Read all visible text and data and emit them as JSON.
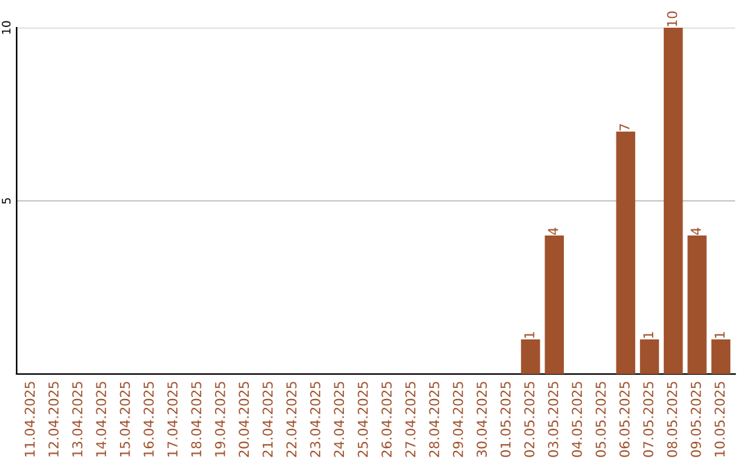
{
  "chart_data": {
    "type": "bar",
    "categories": [
      "11.04.2025",
      "12.04.2025",
      "13.04.2025",
      "14.04.2025",
      "15.04.2025",
      "16.04.2025",
      "17.04.2025",
      "18.04.2025",
      "19.04.2025",
      "20.04.2025",
      "21.04.2025",
      "22.04.2025",
      "23.04.2025",
      "24.04.2025",
      "25.04.2025",
      "26.04.2025",
      "27.04.2025",
      "28.04.2025",
      "29.04.2025",
      "30.04.2025",
      "01.05.2025",
      "02.05.2025",
      "03.05.2025",
      "04.05.2025",
      "05.05.2025",
      "06.05.2025",
      "07.05.2025",
      "08.05.2025",
      "09.05.2025",
      "10.05.2025"
    ],
    "values": [
      0,
      0,
      0,
      0,
      0,
      0,
      0,
      0,
      0,
      0,
      0,
      0,
      0,
      0,
      0,
      0,
      0,
      0,
      0,
      0,
      0,
      1,
      4,
      0,
      0,
      7,
      1,
      10,
      4,
      1
    ],
    "value_labels": [
      null,
      null,
      null,
      null,
      null,
      null,
      null,
      null,
      null,
      null,
      null,
      null,
      null,
      null,
      null,
      null,
      null,
      null,
      null,
      null,
      null,
      "1",
      "4",
      null,
      null,
      "7",
      "1",
      "10",
      "4",
      "1"
    ],
    "color": "#a0522d",
    "ylim": [
      0,
      10
    ],
    "yticks": [
      5,
      10
    ],
    "grid": "y",
    "legend": false
  }
}
